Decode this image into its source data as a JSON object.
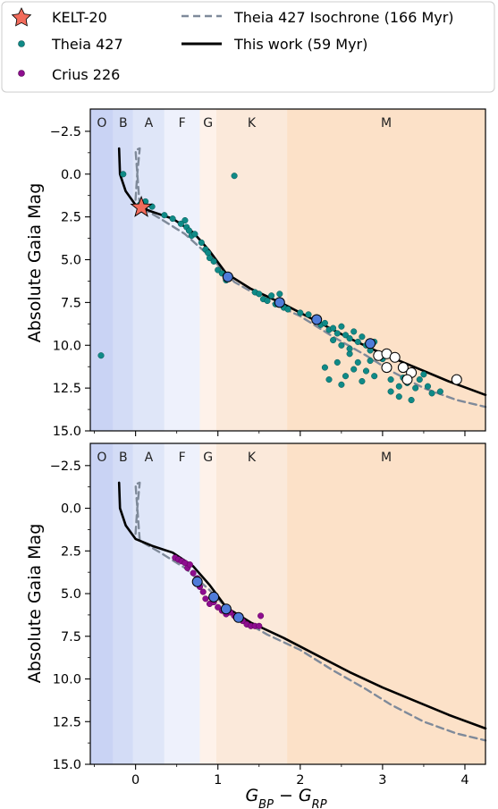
{
  "legend": {
    "items": [
      {
        "label": "KELT-20",
        "marker": "star",
        "color": "#f26b5b"
      },
      {
        "label": "Theia 427",
        "marker": "dot",
        "color": "#0f8a87"
      },
      {
        "label": "Crius 226",
        "marker": "dot",
        "color": "#8e0d8f"
      },
      {
        "label": "Theia 427 Isochrone (166 Myr)",
        "marker": "dashed-line",
        "color": "#7f8a9a"
      },
      {
        "label": "This work (59 Myr)",
        "marker": "solid-line",
        "color": "#000000"
      }
    ]
  },
  "spectral_bands": [
    {
      "label": "O",
      "x0": -0.55,
      "x1": -0.27,
      "color": "#c9d3f4"
    },
    {
      "label": "B",
      "x0": -0.27,
      "x1": -0.03,
      "color": "#d3dcf6"
    },
    {
      "label": "A",
      "x0": -0.03,
      "x1": 0.35,
      "color": "#dfe6f8"
    },
    {
      "label": "F",
      "x0": 0.35,
      "x1": 0.78,
      "color": "#eef1fc"
    },
    {
      "label": "G",
      "x0": 0.78,
      "x1": 0.98,
      "color": "#fef2ea"
    },
    {
      "label": "K",
      "x0": 0.98,
      "x1": 1.84,
      "color": "#fbe9da"
    },
    {
      "label": "M",
      "x0": 1.84,
      "x1": 4.25,
      "color": "#fce1c8"
    }
  ],
  "chart_data": [
    {
      "type": "scatter",
      "panel": "top",
      "xlabel": "",
      "ylabel": "Absolute Gaia Mag",
      "xlim": [
        -0.55,
        4.25
      ],
      "ylim": [
        15.0,
        -3.8
      ],
      "y_inverted": true,
      "xticks": [
        "0",
        "1",
        "2",
        "3",
        "4"
      ],
      "yticks": [
        "−2.5",
        "0.0",
        "2.5",
        "5.0",
        "7.5",
        "10.0",
        "12.5",
        "15.0"
      ],
      "series": [
        {
          "name": "Theia 427",
          "marker": "dot",
          "color": "#0f8a87",
          "points": [
            [
              -0.42,
              10.6
            ],
            [
              -0.15,
              0.0
            ],
            [
              0.05,
              1.8
            ],
            [
              0.12,
              1.6
            ],
            [
              0.2,
              1.9
            ],
            [
              0.35,
              2.4
            ],
            [
              0.45,
              2.6
            ],
            [
              0.6,
              2.7
            ],
            [
              0.62,
              3.1
            ],
            [
              0.55,
              2.9
            ],
            [
              0.65,
              3.3
            ],
            [
              0.68,
              3.6
            ],
            [
              0.72,
              3.5
            ],
            [
              0.8,
              4.0
            ],
            [
              0.85,
              4.4
            ],
            [
              0.88,
              4.6
            ],
            [
              0.9,
              4.9
            ],
            [
              0.95,
              5.1
            ],
            [
              1.0,
              5.6
            ],
            [
              1.05,
              5.8
            ],
            [
              1.1,
              6.2
            ],
            [
              1.15,
              6.0
            ],
            [
              1.2,
              0.1
            ],
            [
              1.45,
              6.9
            ],
            [
              1.5,
              7.0
            ],
            [
              1.55,
              7.3
            ],
            [
              1.6,
              7.4
            ],
            [
              1.65,
              7.1
            ],
            [
              1.7,
              7.6
            ],
            [
              1.75,
              7.0
            ],
            [
              1.8,
              7.8
            ],
            [
              1.85,
              7.9
            ],
            [
              2.0,
              8.1
            ],
            [
              2.1,
              8.2
            ],
            [
              2.2,
              8.5
            ],
            [
              2.25,
              8.8
            ],
            [
              2.3,
              8.7
            ],
            [
              2.35,
              9.1
            ],
            [
              2.4,
              9.0
            ],
            [
              2.45,
              9.3
            ],
            [
              2.5,
              8.9
            ],
            [
              2.55,
              9.4
            ],
            [
              2.6,
              9.6
            ],
            [
              2.65,
              9.2
            ],
            [
              2.7,
              9.8
            ],
            [
              2.75,
              9.5
            ],
            [
              2.8,
              10.0
            ],
            [
              2.85,
              10.3
            ],
            [
              2.9,
              9.8
            ],
            [
              2.95,
              10.5
            ],
            [
              3.0,
              10.8
            ],
            [
              2.5,
              10.0
            ],
            [
              2.6,
              10.5
            ],
            [
              2.7,
              11.0
            ],
            [
              2.8,
              11.5
            ],
            [
              2.45,
              11.0
            ],
            [
              2.55,
              11.8
            ],
            [
              2.65,
              11.4
            ],
            [
              2.3,
              11.3
            ],
            [
              2.35,
              12.0
            ],
            [
              2.5,
              12.3
            ],
            [
              2.75,
              12.1
            ],
            [
              2.9,
              11.8
            ],
            [
              3.1,
              12.0
            ],
            [
              3.2,
              12.4
            ],
            [
              3.3,
              12.2
            ],
            [
              3.4,
              12.5
            ],
            [
              3.45,
              12.0
            ],
            [
              3.5,
              11.7
            ],
            [
              3.55,
              12.4
            ],
            [
              3.1,
              12.7
            ],
            [
              3.2,
              13.0
            ],
            [
              3.35,
              13.2
            ],
            [
              3.6,
              12.8
            ],
            [
              3.7,
              12.7
            ],
            [
              2.4,
              9.7
            ],
            [
              2.6,
              10.2
            ],
            [
              2.85,
              10.9
            ],
            [
              3.05,
              11.3
            ],
            [
              3.25,
              11.9
            ]
          ]
        },
        {
          "name": "",
          "marker": "dot-outlined",
          "color": "#4f7bd9",
          "points": [
            [
              1.12,
              6.0
            ],
            [
              1.75,
              7.5
            ],
            [
              2.2,
              8.5
            ],
            [
              2.85,
              9.9
            ]
          ]
        },
        {
          "name": "",
          "marker": "dot-outlined",
          "color": "#ffffff",
          "points": [
            [
              2.95,
              10.6
            ],
            [
              3.05,
              10.5
            ],
            [
              3.15,
              10.7
            ],
            [
              3.05,
              11.3
            ],
            [
              3.25,
              11.3
            ],
            [
              3.35,
              11.6
            ],
            [
              3.3,
              12.0
            ],
            [
              3.9,
              12.0
            ]
          ]
        },
        {
          "name": "KELT-20",
          "marker": "star",
          "color": "#f26b5b",
          "points": [
            [
              0.07,
              1.95
            ]
          ]
        },
        {
          "name": "Theia 427 Isochrone (166 Myr)",
          "marker": "dashed-line",
          "color": "#7f8a9a",
          "points": [
            [
              0.0,
              1.5
            ],
            [
              0.02,
              0.0
            ],
            [
              0.05,
              -1.5
            ],
            [
              0.0,
              -1.4
            ],
            [
              0.05,
              1.9
            ],
            [
              0.3,
              2.6
            ],
            [
              0.6,
              3.5
            ],
            [
              0.9,
              4.8
            ],
            [
              1.2,
              6.3
            ],
            [
              1.6,
              7.4
            ],
            [
              2.0,
              8.3
            ],
            [
              2.4,
              9.5
            ],
            [
              2.8,
              10.6
            ],
            [
              3.1,
              11.5
            ],
            [
              3.5,
              12.5
            ],
            [
              3.9,
              13.2
            ],
            [
              4.25,
              13.6
            ]
          ]
        },
        {
          "name": "This work (59 Myr)",
          "marker": "solid-line",
          "color": "#000000",
          "points": [
            [
              -0.2,
              -1.5
            ],
            [
              -0.19,
              0.0
            ],
            [
              -0.12,
              1.0
            ],
            [
              0.0,
              1.8
            ],
            [
              0.2,
              2.2
            ],
            [
              0.45,
              2.6
            ],
            [
              0.7,
              3.4
            ],
            [
              0.9,
              4.5
            ],
            [
              1.1,
              5.8
            ],
            [
              1.4,
              6.7
            ],
            [
              1.8,
              7.6
            ],
            [
              2.2,
              8.6
            ],
            [
              2.6,
              9.6
            ],
            [
              3.0,
              10.5
            ],
            [
              3.4,
              11.3
            ],
            [
              3.8,
              12.1
            ],
            [
              4.25,
              12.9
            ]
          ]
        }
      ]
    },
    {
      "type": "scatter",
      "panel": "bottom",
      "xlabel": "G_BP − G_RP",
      "ylabel": "Absolute Gaia Mag",
      "xlim": [
        -0.55,
        4.25
      ],
      "ylim": [
        15.0,
        -3.8
      ],
      "y_inverted": true,
      "xticks": [
        "0",
        "1",
        "2",
        "3",
        "4"
      ],
      "yticks": [
        "−2.5",
        "0.0",
        "2.5",
        "5.0",
        "7.5",
        "10.0",
        "12.5",
        "15.0"
      ],
      "series": [
        {
          "name": "Crius 226",
          "marker": "dot",
          "color": "#8e0d8f",
          "points": [
            [
              0.48,
              2.9
            ],
            [
              0.52,
              3.0
            ],
            [
              0.56,
              3.1
            ],
            [
              0.6,
              3.2
            ],
            [
              0.63,
              3.5
            ],
            [
              0.66,
              3.3
            ],
            [
              0.7,
              3.8
            ],
            [
              0.75,
              4.1
            ],
            [
              0.78,
              4.6
            ],
            [
              0.82,
              4.9
            ],
            [
              0.85,
              5.3
            ],
            [
              0.9,
              5.6
            ],
            [
              0.95,
              5.5
            ],
            [
              1.0,
              5.8
            ],
            [
              1.05,
              6.0
            ],
            [
              1.1,
              6.2
            ],
            [
              1.15,
              6.1
            ],
            [
              1.2,
              6.3
            ],
            [
              1.3,
              6.6
            ],
            [
              1.35,
              6.8
            ],
            [
              1.4,
              6.9
            ],
            [
              1.45,
              6.9
            ],
            [
              1.5,
              6.9
            ],
            [
              1.52,
              6.3
            ]
          ]
        },
        {
          "name": "",
          "marker": "dot-outlined",
          "color": "#4f7bd9",
          "points": [
            [
              0.75,
              4.3
            ],
            [
              0.95,
              5.2
            ],
            [
              1.1,
              5.9
            ],
            [
              1.25,
              6.4
            ]
          ]
        },
        {
          "name": "Theia 427 Isochrone (166 Myr)",
          "marker": "dashed-line",
          "color": "#7f8a9a",
          "points": [
            [
              0.0,
              1.5
            ],
            [
              0.02,
              0.0
            ],
            [
              0.05,
              -1.5
            ],
            [
              0.0,
              -1.4
            ],
            [
              0.05,
              1.9
            ],
            [
              0.3,
              2.6
            ],
            [
              0.6,
              3.5
            ],
            [
              0.9,
              4.8
            ],
            [
              1.2,
              6.3
            ],
            [
              1.6,
              7.4
            ],
            [
              2.0,
              8.3
            ],
            [
              2.4,
              9.5
            ],
            [
              2.8,
              10.6
            ],
            [
              3.1,
              11.5
            ],
            [
              3.5,
              12.5
            ],
            [
              3.9,
              13.2
            ],
            [
              4.25,
              13.6
            ]
          ]
        },
        {
          "name": "This work (59 Myr)",
          "marker": "solid-line",
          "color": "#000000",
          "points": [
            [
              -0.2,
              -1.5
            ],
            [
              -0.19,
              0.0
            ],
            [
              -0.12,
              1.0
            ],
            [
              0.0,
              1.8
            ],
            [
              0.2,
              2.2
            ],
            [
              0.45,
              2.6
            ],
            [
              0.7,
              3.4
            ],
            [
              0.9,
              4.5
            ],
            [
              1.1,
              5.8
            ],
            [
              1.4,
              6.7
            ],
            [
              1.8,
              7.6
            ],
            [
              2.2,
              8.6
            ],
            [
              2.6,
              9.6
            ],
            [
              3.0,
              10.5
            ],
            [
              3.4,
              11.3
            ],
            [
              3.8,
              12.1
            ],
            [
              4.25,
              12.9
            ]
          ]
        }
      ]
    }
  ]
}
